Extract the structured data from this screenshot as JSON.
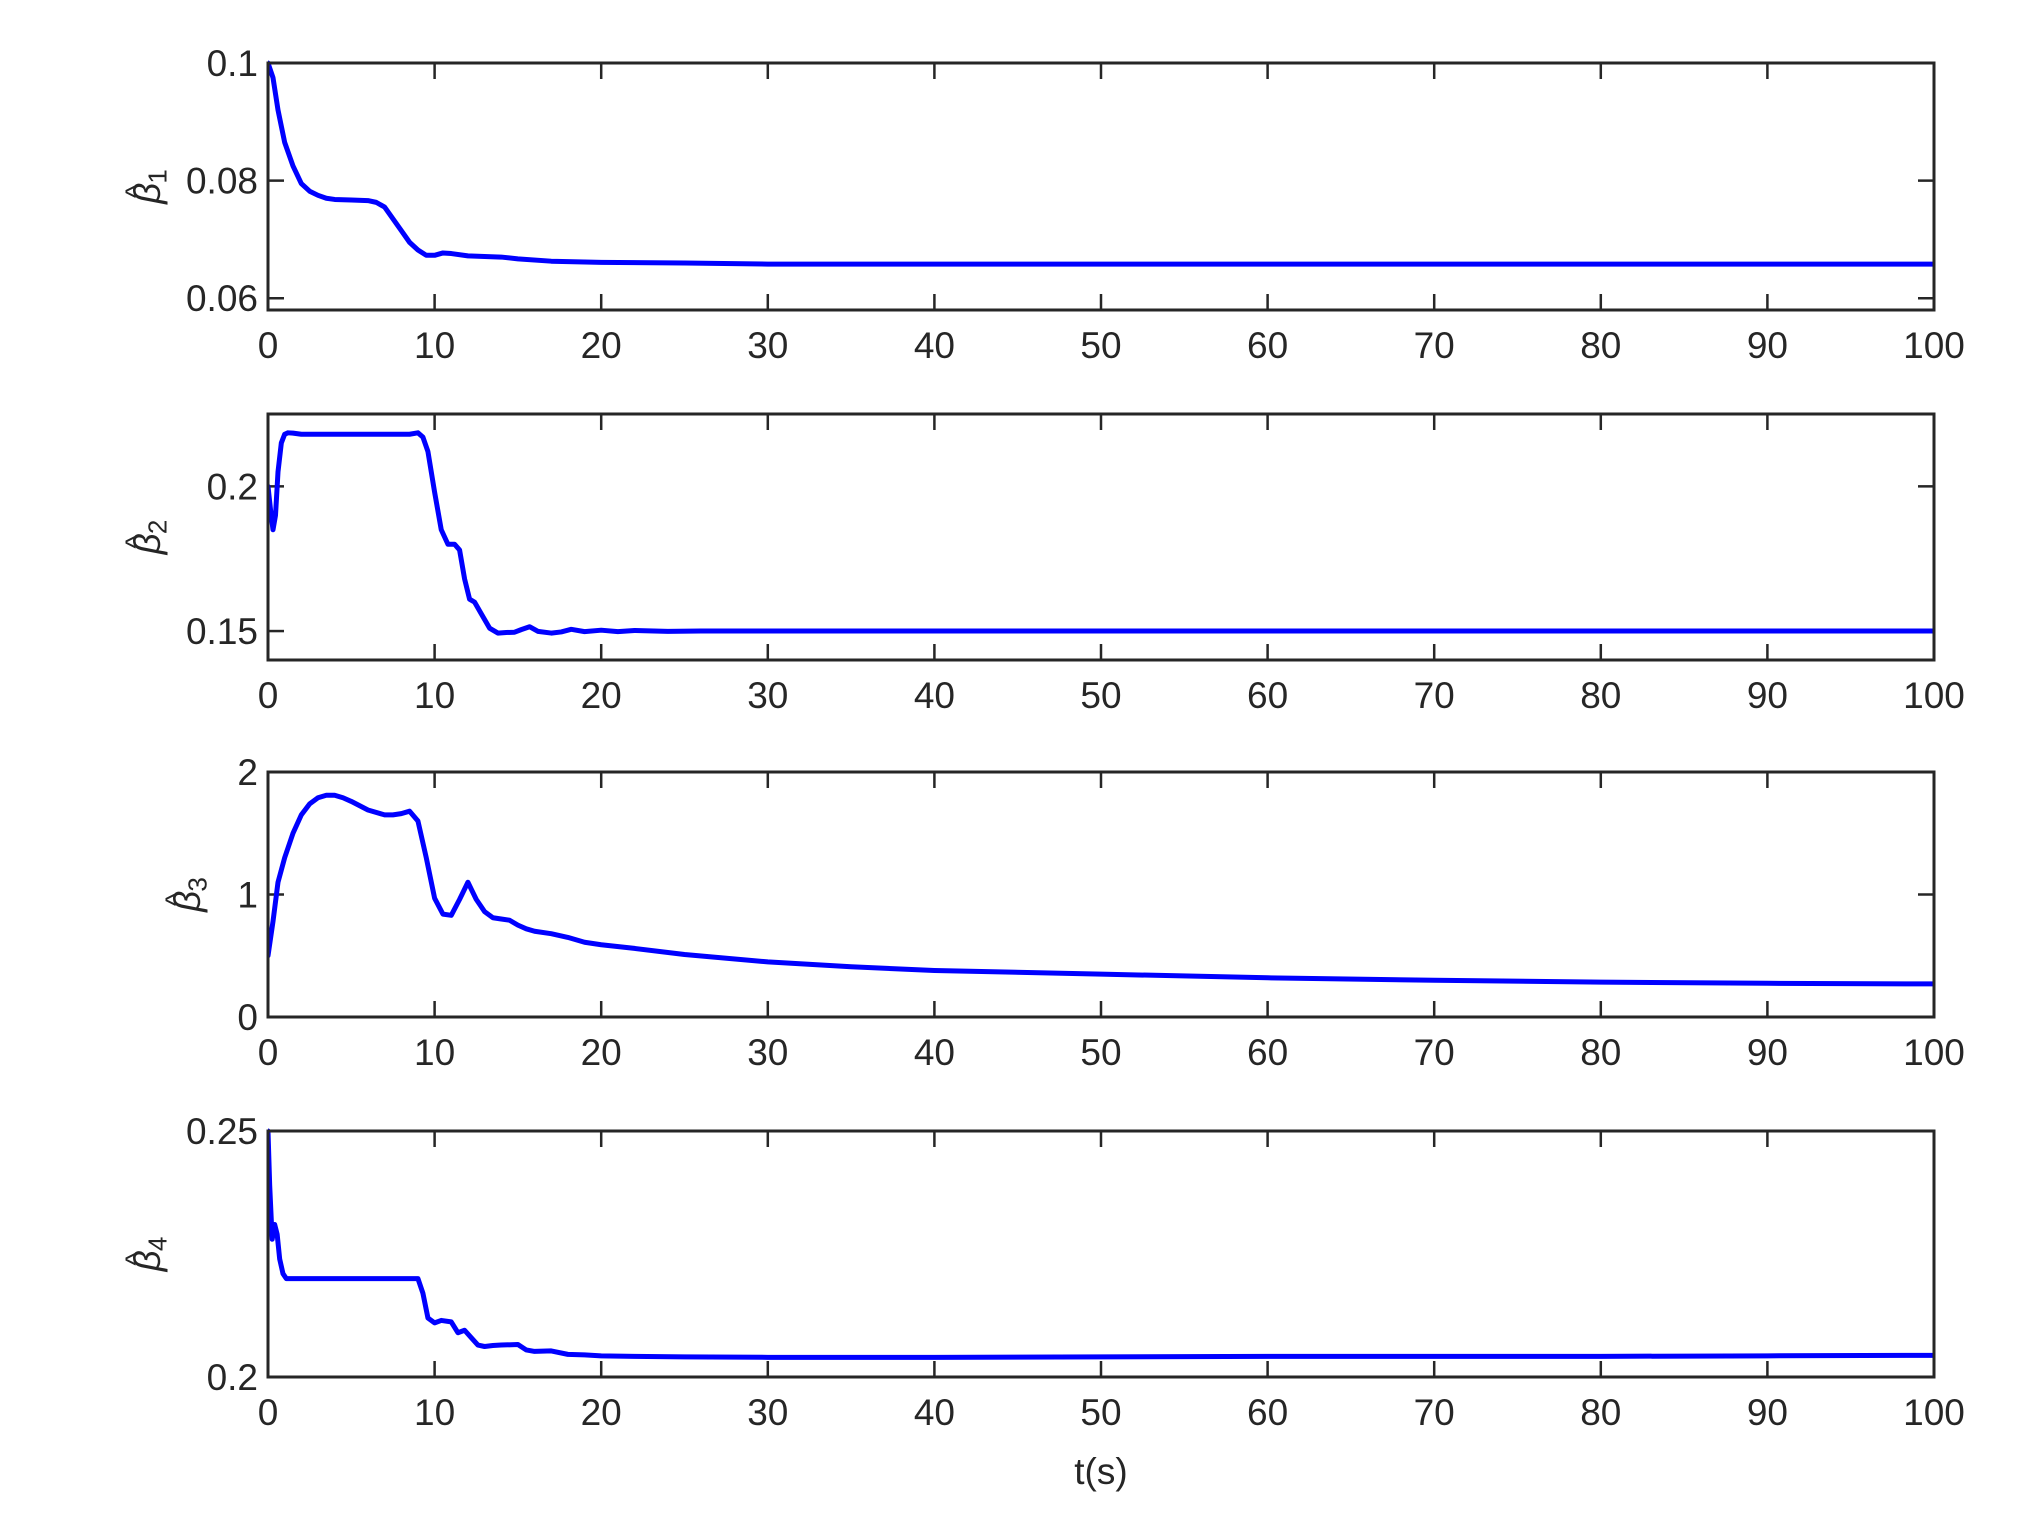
{
  "chart_data": [
    {
      "type": "line",
      "ylabel": "β̂1",
      "ylabel_base": "β",
      "ylabel_sub": "1",
      "xlim": [
        0,
        100
      ],
      "ylim": [
        0.058,
        0.1
      ],
      "xticks": [
        0,
        10,
        20,
        30,
        40,
        50,
        60,
        70,
        80,
        90,
        100
      ],
      "xticklabels": [
        "0",
        "10",
        "20",
        "30",
        "40",
        "50",
        "60",
        "70",
        "80",
        "90",
        "100"
      ],
      "yticks": [
        0.06,
        0.08,
        0.1
      ],
      "yticklabels": [
        "0.06",
        "0.08",
        "0.1"
      ],
      "grid": false,
      "series": [
        {
          "color": "#0000ff",
          "x": [
            0,
            0.3,
            0.6,
            1,
            1.5,
            2,
            2.5,
            3,
            3.5,
            4,
            5,
            6,
            6.5,
            7,
            7.5,
            8,
            8.5,
            9,
            9.5,
            10,
            10.5,
            11,
            12,
            13,
            14,
            15,
            17,
            20,
            25,
            30,
            40,
            50,
            60,
            70,
            80,
            90,
            100
          ],
          "y": [
            0.1,
            0.0975,
            0.092,
            0.0865,
            0.0825,
            0.0795,
            0.0782,
            0.0775,
            0.077,
            0.0768,
            0.0767,
            0.0766,
            0.0763,
            0.0755,
            0.0735,
            0.0715,
            0.0695,
            0.0682,
            0.0673,
            0.0673,
            0.0677,
            0.0676,
            0.0672,
            0.0671,
            0.067,
            0.0667,
            0.0663,
            0.0661,
            0.066,
            0.0658,
            0.0658,
            0.0658,
            0.0658,
            0.0658,
            0.0658,
            0.0658,
            0.0658
          ]
        }
      ]
    },
    {
      "type": "line",
      "ylabel": "β̂2",
      "ylabel_base": "β",
      "ylabel_sub": "2",
      "xlim": [
        0,
        100
      ],
      "ylim": [
        0.14,
        0.225
      ],
      "xticks": [
        0,
        10,
        20,
        30,
        40,
        50,
        60,
        70,
        80,
        90,
        100
      ],
      "xticklabels": [
        "0",
        "10",
        "20",
        "30",
        "40",
        "50",
        "60",
        "70",
        "80",
        "90",
        "100"
      ],
      "yticks": [
        0.15,
        0.2
      ],
      "yticklabels": [
        "0.15",
        "0.2"
      ],
      "grid": false,
      "series": [
        {
          "color": "#0000ff",
          "x": [
            0,
            0.15,
            0.3,
            0.45,
            0.6,
            0.8,
            1.0,
            1.2,
            1.5,
            2,
            3,
            4,
            5,
            6,
            7,
            8,
            8.5,
            9,
            9.3,
            9.6,
            10,
            10.4,
            10.8,
            11.2,
            11.5,
            11.8,
            12.1,
            12.4,
            12.8,
            13.3,
            13.8,
            14.3,
            14.8,
            15.2,
            15.7,
            16.2,
            17,
            17.6,
            18.2,
            19,
            20,
            21,
            22,
            24,
            26,
            30,
            40,
            50,
            60,
            70,
            80,
            90,
            100
          ],
          "y": [
            0.2,
            0.192,
            0.185,
            0.19,
            0.205,
            0.215,
            0.218,
            0.2185,
            0.2184,
            0.218,
            0.218,
            0.218,
            0.218,
            0.218,
            0.218,
            0.218,
            0.218,
            0.2185,
            0.217,
            0.212,
            0.198,
            0.185,
            0.18,
            0.18,
            0.178,
            0.168,
            0.161,
            0.16,
            0.156,
            0.151,
            0.1493,
            0.1495,
            0.1496,
            0.1505,
            0.1515,
            0.1499,
            0.1493,
            0.1497,
            0.1506,
            0.1498,
            0.1503,
            0.1498,
            0.1502,
            0.1499,
            0.15,
            0.15,
            0.15,
            0.15,
            0.15,
            0.15,
            0.15,
            0.15,
            0.15
          ]
        }
      ]
    },
    {
      "type": "line",
      "ylabel": "β̂3",
      "ylabel_base": "β",
      "ylabel_sub": "3",
      "xlim": [
        0,
        100
      ],
      "ylim": [
        0,
        2
      ],
      "xticks": [
        0,
        10,
        20,
        30,
        40,
        50,
        60,
        70,
        80,
        90,
        100
      ],
      "xticklabels": [
        "0",
        "10",
        "20",
        "30",
        "40",
        "50",
        "60",
        "70",
        "80",
        "90",
        "100"
      ],
      "yticks": [
        0,
        1,
        2
      ],
      "yticklabels": [
        "0",
        "1",
        "2"
      ],
      "grid": false,
      "series": [
        {
          "color": "#0000ff",
          "x": [
            0,
            0.3,
            0.6,
            1,
            1.5,
            2,
            2.5,
            3,
            3.5,
            4,
            4.5,
            5,
            6,
            7,
            7.5,
            8,
            8.5,
            9,
            9.5,
            10,
            10.5,
            11,
            11.5,
            12,
            12.5,
            13,
            13.5,
            14,
            14.5,
            15,
            15.5,
            16,
            17,
            18,
            19,
            20,
            22,
            25,
            30,
            35,
            40,
            50,
            60,
            70,
            80,
            90,
            100
          ],
          "y": [
            0.5,
            0.78,
            1.1,
            1.3,
            1.5,
            1.65,
            1.74,
            1.79,
            1.81,
            1.81,
            1.79,
            1.76,
            1.69,
            1.65,
            1.65,
            1.66,
            1.68,
            1.6,
            1.3,
            0.97,
            0.84,
            0.83,
            0.96,
            1.1,
            0.96,
            0.86,
            0.81,
            0.8,
            0.79,
            0.75,
            0.72,
            0.7,
            0.68,
            0.65,
            0.61,
            0.59,
            0.56,
            0.51,
            0.45,
            0.41,
            0.38,
            0.35,
            0.32,
            0.3,
            0.285,
            0.275,
            0.27
          ]
        }
      ]
    },
    {
      "type": "line",
      "ylabel": "β̂4",
      "ylabel_base": "β",
      "ylabel_sub": "4",
      "xlim": [
        0,
        100
      ],
      "ylim": [
        0.2,
        0.25
      ],
      "xticks": [
        0,
        10,
        20,
        30,
        40,
        50,
        60,
        70,
        80,
        90,
        100
      ],
      "xticklabels": [
        "0",
        "10",
        "20",
        "30",
        "40",
        "50",
        "60",
        "70",
        "80",
        "90",
        "100"
      ],
      "yticks": [
        0.2,
        0.25
      ],
      "yticklabels": [
        "0.2",
        "0.25"
      ],
      "grid": false,
      "xlabel": "t(s)",
      "series": [
        {
          "color": "#0000ff",
          "x": [
            0,
            0.1,
            0.25,
            0.4,
            0.55,
            0.7,
            0.9,
            1.1,
            1.5,
            2,
            3,
            4,
            5,
            6,
            7,
            8,
            8.5,
            9,
            9.3,
            9.6,
            10,
            10.4,
            11,
            11.4,
            11.8,
            12.2,
            12.6,
            13,
            13.5,
            14,
            15,
            15.5,
            16,
            17,
            18,
            19,
            20,
            22,
            25,
            30,
            35,
            40,
            50,
            60,
            70,
            80,
            90,
            100
          ],
          "y": [
            0.25,
            0.239,
            0.228,
            0.231,
            0.229,
            0.224,
            0.221,
            0.22,
            0.22,
            0.22,
            0.22,
            0.22,
            0.22,
            0.22,
            0.22,
            0.22,
            0.22,
            0.22,
            0.217,
            0.212,
            0.211,
            0.2115,
            0.2112,
            0.209,
            0.2095,
            0.208,
            0.2065,
            0.2062,
            0.2064,
            0.2065,
            0.2066,
            0.2055,
            0.2052,
            0.2053,
            0.2046,
            0.2045,
            0.2043,
            0.2042,
            0.2041,
            0.204,
            0.204,
            0.204,
            0.2041,
            0.2042,
            0.2042,
            0.2042,
            0.2043,
            0.2044
          ]
        }
      ]
    }
  ]
}
